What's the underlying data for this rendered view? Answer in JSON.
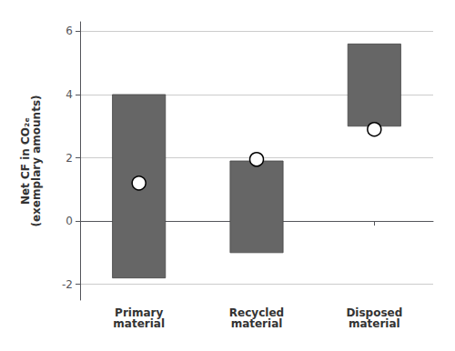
{
  "chart_data": {
    "type": "range_bar",
    "categories": [
      "Primary\nmaterial",
      "Recycled\nmaterial",
      "Disposed\nmaterial"
    ],
    "ylabel": "Net CF in CO₂ₑ\n(exemplary amounts)",
    "series": [
      {
        "type": "range_bar",
        "color": "#666666",
        "lows": [
          -1.8,
          -1.0,
          3.0
        ],
        "highs": [
          4.0,
          1.9,
          5.6
        ]
      },
      {
        "type": "scatter",
        "color": "white",
        "values": [
          1.2,
          1.95,
          2.9
        ]
      }
    ],
    "ylim": [
      -2.5,
      6.3
    ],
    "yticks": [
      -2,
      0,
      2,
      4,
      6
    ],
    "grid": true
  }
}
